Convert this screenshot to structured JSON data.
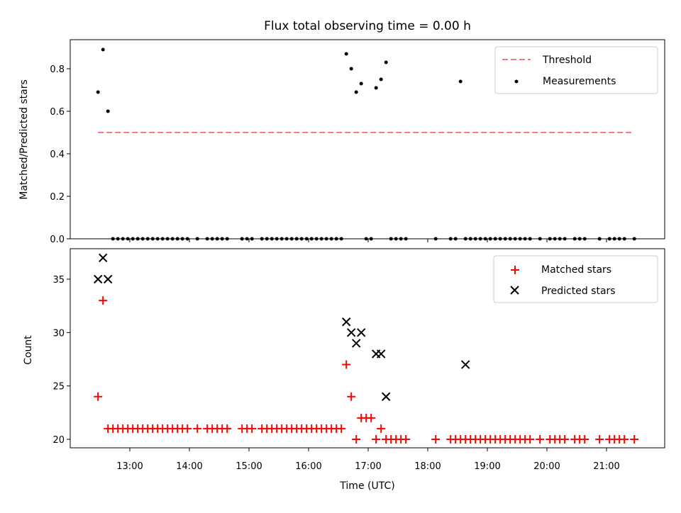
{
  "chart_data": [
    {
      "type": "scatter",
      "title": "Flux total observing time = 0.00 h",
      "xlabel": "",
      "ylabel": "Matched/Predicted stars",
      "xlim": [
        "12:00",
        "22:00"
      ],
      "ylim": [
        0,
        0.93
      ],
      "yticks": [
        0.0,
        0.2,
        0.4,
        0.6,
        0.8
      ],
      "ytick_labels": [
        "0.0",
        "0.2",
        "0.4",
        "0.6",
        "0.8"
      ],
      "grid": false,
      "legend_position": "top-right",
      "threshold": {
        "name": "Threshold",
        "y": 0.5,
        "x_range": [
          "12:28",
          "21:25"
        ],
        "color": "#ff7777",
        "style": "dashed"
      },
      "series": [
        {
          "name": "Measurements",
          "color": "#000000",
          "marker": "dot",
          "x": [
            "12:28",
            "12:33",
            "12:38",
            "12:43",
            "12:48",
            "12:53",
            "12:58",
            "13:03",
            "13:08",
            "13:13",
            "13:18",
            "13:23",
            "13:28",
            "13:33",
            "13:38",
            "13:43",
            "13:48",
            "13:53",
            "13:58",
            "14:08",
            "14:18",
            "14:23",
            "14:28",
            "14:33",
            "14:38",
            "14:53",
            "14:58",
            "15:03",
            "15:13",
            "15:18",
            "15:23",
            "15:28",
            "15:33",
            "15:38",
            "15:43",
            "15:48",
            "15:53",
            "15:58",
            "16:03",
            "16:08",
            "16:13",
            "16:18",
            "16:23",
            "16:28",
            "16:33",
            "16:38",
            "16:43",
            "16:48",
            "16:53",
            "16:58",
            "17:03",
            "17:08",
            "17:13",
            "17:18",
            "17:23",
            "17:28",
            "17:33",
            "17:38",
            "18:08",
            "18:23",
            "18:28",
            "18:33",
            "18:38",
            "18:43",
            "18:48",
            "18:53",
            "18:58",
            "19:03",
            "19:08",
            "19:13",
            "19:18",
            "19:23",
            "19:28",
            "19:33",
            "19:38",
            "19:43",
            "19:53",
            "20:03",
            "20:08",
            "20:13",
            "20:18",
            "20:28",
            "20:33",
            "20:38",
            "20:53",
            "21:03",
            "21:08",
            "21:13",
            "21:18",
            "21:28"
          ],
          "y": [
            0.69,
            0.89,
            0.6,
            0,
            0,
            0,
            0,
            0,
            0,
            0,
            0,
            0,
            0,
            0,
            0,
            0,
            0,
            0,
            0,
            0,
            0,
            0,
            0,
            0,
            0,
            0,
            0,
            0,
            0,
            0,
            0,
            0,
            0,
            0,
            0,
            0,
            0,
            0,
            0,
            0,
            0,
            0,
            0,
            0,
            0,
            0.87,
            0.8,
            0.69,
            0.73,
            0,
            0,
            0.71,
            0.75,
            0.83,
            0,
            0,
            0,
            0,
            0,
            0,
            0,
            0.74,
            0,
            0,
            0,
            0,
            0,
            0,
            0,
            0,
            0,
            0,
            0,
            0,
            0,
            0,
            0,
            0,
            0,
            0,
            0,
            0,
            0,
            0,
            0,
            0,
            0,
            0,
            0,
            0
          ]
        }
      ]
    },
    {
      "type": "scatter",
      "title": "",
      "xlabel": "Time (UTC)",
      "ylabel": "Count",
      "xlim": [
        "12:00",
        "22:00"
      ],
      "xticks": [
        "13:00",
        "14:00",
        "15:00",
        "16:00",
        "17:00",
        "18:00",
        "19:00",
        "20:00",
        "21:00"
      ],
      "ylim": [
        19.2,
        37.8
      ],
      "yticks": [
        20,
        25,
        30,
        35
      ],
      "ytick_labels": [
        "20",
        "25",
        "30",
        "35"
      ],
      "grid": false,
      "legend_position": "top-right",
      "series": [
        {
          "name": "Matched stars",
          "color": "#ff0000",
          "marker": "plus",
          "x": [
            "12:28",
            "12:33",
            "12:38",
            "12:43",
            "12:48",
            "12:53",
            "12:58",
            "13:03",
            "13:08",
            "13:13",
            "13:18",
            "13:23",
            "13:28",
            "13:33",
            "13:38",
            "13:43",
            "13:48",
            "13:53",
            "13:58",
            "14:08",
            "14:18",
            "14:23",
            "14:28",
            "14:33",
            "14:38",
            "14:53",
            "14:58",
            "15:03",
            "15:13",
            "15:18",
            "15:23",
            "15:28",
            "15:33",
            "15:38",
            "15:43",
            "15:48",
            "15:53",
            "15:58",
            "16:03",
            "16:08",
            "16:13",
            "16:18",
            "16:23",
            "16:28",
            "16:33",
            "16:38",
            "16:43",
            "16:48",
            "16:53",
            "16:58",
            "17:03",
            "17:08",
            "17:13",
            "17:18",
            "17:23",
            "17:28",
            "17:33",
            "17:38",
            "18:08",
            "18:23",
            "18:28",
            "18:33",
            "18:38",
            "18:43",
            "18:48",
            "18:53",
            "18:58",
            "19:03",
            "19:08",
            "19:13",
            "19:18",
            "19:23",
            "19:28",
            "19:33",
            "19:38",
            "19:43",
            "19:53",
            "20:03",
            "20:08",
            "20:13",
            "20:18",
            "20:28",
            "20:33",
            "20:38",
            "20:53",
            "21:03",
            "21:08",
            "21:13",
            "21:18",
            "21:28"
          ],
          "y": [
            24,
            33,
            21,
            21,
            21,
            21,
            21,
            21,
            21,
            21,
            21,
            21,
            21,
            21,
            21,
            21,
            21,
            21,
            21,
            21,
            21,
            21,
            21,
            21,
            21,
            21,
            21,
            21,
            21,
            21,
            21,
            21,
            21,
            21,
            21,
            21,
            21,
            21,
            21,
            21,
            21,
            21,
            21,
            21,
            21,
            27,
            24,
            20,
            22,
            22,
            22,
            20,
            21,
            20,
            20,
            20,
            20,
            20,
            20,
            20,
            20,
            20,
            20,
            20,
            20,
            20,
            20,
            20,
            20,
            20,
            20,
            20,
            20,
            20,
            20,
            20,
            20,
            20,
            20,
            20,
            20,
            20,
            20,
            20,
            20,
            20,
            20,
            20,
            20,
            20
          ]
        },
        {
          "name": "Predicted stars",
          "color": "#000000",
          "marker": "x",
          "x": [
            "12:28",
            "12:33",
            "12:38",
            "16:38",
            "16:43",
            "16:48",
            "16:53",
            "17:08",
            "17:13",
            "17:18",
            "18:38"
          ],
          "y": [
            35,
            37,
            35,
            31,
            30,
            29,
            30,
            28,
            28,
            24,
            27
          ]
        }
      ]
    }
  ]
}
